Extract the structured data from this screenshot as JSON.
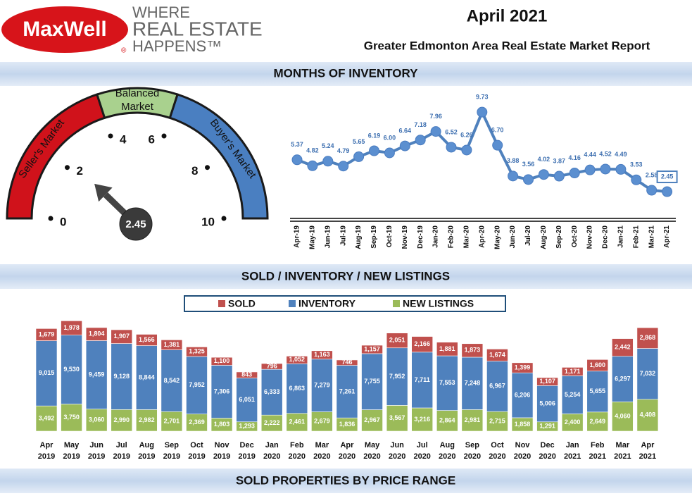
{
  "header": {
    "logo": "MaxWell",
    "registered": "®",
    "tagline": [
      "WHERE",
      "REAL ESTATE",
      "HAPPENS™"
    ],
    "title": "April 2021",
    "subtitle": "Greater Edmonton Area Real Estate Market Report"
  },
  "sections": [
    "MONTHS OF INVENTORY",
    "SOLD / INVENTORY / NEW LISTINGS",
    "SOLD PROPERTIES BY PRICE RANGE"
  ],
  "chart_data": [
    {
      "type": "gauge",
      "value": 2.45,
      "xlim": [
        0,
        10
      ],
      "xticks": [
        0,
        2,
        4,
        6,
        8,
        10
      ],
      "zones": [
        {
          "label": [
            "Seller's Market"
          ],
          "from": 0,
          "to": 4,
          "color": "#d0121b"
        },
        {
          "label": [
            "Balanced",
            "Market"
          ],
          "from": 4,
          "to": 6,
          "color": "#a9d18e"
        },
        {
          "label": [
            "Buyer's Market"
          ],
          "from": 6,
          "to": 10,
          "color": "#4a7fc1"
        }
      ]
    },
    {
      "type": "line",
      "color": "#4f81bd",
      "ylim": [
        0,
        10
      ],
      "categories": [
        "Apr-19",
        "May-19",
        "Jun-19",
        "Jul-19",
        "Aug-19",
        "Sep-19",
        "Oct-19",
        "Nov-19",
        "Dec-19",
        "Jan-20",
        "Feb-20",
        "Mar-20",
        "Apr-20",
        "May-20",
        "Jun-20",
        "Jul-20",
        "Aug-20",
        "Sep-20",
        "Oct-20",
        "Nov-20",
        "Dec-20",
        "Jan-21",
        "Feb-21",
        "Mar-21",
        "Apr-21"
      ],
      "values": [
        5.37,
        4.82,
        5.24,
        4.79,
        5.65,
        6.19,
        6.0,
        6.64,
        7.18,
        7.96,
        6.52,
        6.26,
        9.73,
        6.7,
        3.88,
        3.56,
        4.02,
        3.87,
        4.16,
        4.44,
        4.52,
        4.49,
        3.53,
        2.58,
        2.45
      ],
      "value_labels": [
        "5.37",
        "4.82",
        "5.24",
        "4.79",
        "5.65",
        "6.19",
        "6.00",
        "6.64",
        "7.18",
        "7.96",
        "6.52",
        "6.26",
        "9.73",
        "6.70",
        "3.88",
        "3.56",
        "4.02",
        "3.87",
        "4.16",
        "4.44",
        "4.52",
        "4.49",
        "3.53",
        "2.58",
        "2.45"
      ]
    },
    {
      "type": "stacked_bar",
      "ylim": [
        0,
        15000
      ],
      "categories": [
        [
          "Apr",
          "2019"
        ],
        [
          "May",
          "2019"
        ],
        [
          "Jun",
          "2019"
        ],
        [
          "Jul",
          "2019"
        ],
        [
          "Aug",
          "2019"
        ],
        [
          "Sep",
          "2019"
        ],
        [
          "Oct",
          "2019"
        ],
        [
          "Nov",
          "2019"
        ],
        [
          "Dec",
          "2019"
        ],
        [
          "Jan",
          "2020"
        ],
        [
          "Feb",
          "2020"
        ],
        [
          "Mar",
          "2020"
        ],
        [
          "Apr",
          "2020"
        ],
        [
          "May",
          "2020"
        ],
        [
          "Jun",
          "2020"
        ],
        [
          "Jul",
          "2020"
        ],
        [
          "Aug",
          "2020"
        ],
        [
          "Sep",
          "2020"
        ],
        [
          "Oct",
          "2020"
        ],
        [
          "Nov",
          "2020"
        ],
        [
          "Dec",
          "2020"
        ],
        [
          "Jan",
          "2021"
        ],
        [
          "Feb",
          "2021"
        ],
        [
          "Mar",
          "2021"
        ],
        [
          "Apr",
          "2021"
        ]
      ],
      "series": [
        {
          "name": "SOLD",
          "color": "#c0504d",
          "values": [
            1679,
            1978,
            1804,
            1907,
            1566,
            1381,
            1325,
            1100,
            843,
            796,
            1052,
            1163,
            746,
            1157,
            2051,
            2166,
            1881,
            1873,
            1674,
            1399,
            1107,
            1171,
            1600,
            2442,
            2868
          ],
          "value_labels": [
            "1,679",
            "1,978",
            "1,804",
            "1,907",
            "1,566",
            "1,381",
            "1,325",
            "1,100",
            "843",
            "796",
            "1,052",
            "1,163",
            "746",
            "1,157",
            "2,051",
            "2,166",
            "1,881",
            "1,873",
            "1,674",
            "1,399",
            "1,107",
            "1,171",
            "1,600",
            "2,442",
            "2,868"
          ]
        },
        {
          "name": "INVENTORY",
          "color": "#4f81bd",
          "values": [
            9015,
            9530,
            9459,
            9128,
            8844,
            8542,
            7952,
            7306,
            6051,
            6333,
            6863,
            7279,
            7261,
            7755,
            7952,
            7711,
            7553,
            7248,
            6967,
            6206,
            5006,
            5254,
            5655,
            6297,
            7032
          ],
          "value_labels": [
            "9,015",
            "9,530",
            "9,459",
            "9,128",
            "8,844",
            "8,542",
            "7,952",
            "7,306",
            "6,051",
            "6,333",
            "6,863",
            "7,279",
            "7,261",
            "7,755",
            "7,952",
            "7,711",
            "7,553",
            "7,248",
            "6,967",
            "6,206",
            "5,006",
            "5,254",
            "5,655",
            "6,297",
            "7,032"
          ]
        },
        {
          "name": "NEW LISTINGS",
          "color": "#9bbb59",
          "values": [
            3492,
            3750,
            3060,
            2990,
            2982,
            2701,
            2369,
            1803,
            1293,
            2222,
            2461,
            2679,
            1836,
            2967,
            3567,
            3216,
            2864,
            2981,
            2715,
            1858,
            1291,
            2400,
            2649,
            4060,
            4408
          ],
          "value_labels": [
            "3,492",
            "3,750",
            "3,060",
            "2,990",
            "2,982",
            "2,701",
            "2,369",
            "1,803",
            "1,293",
            "2,222",
            "2,461",
            "2,679",
            "1,836",
            "2,967",
            "3,567",
            "3,216",
            "2,864",
            "2,981",
            "2,715",
            "1,858",
            "1,291",
            "2,400",
            "2,649",
            "4,060",
            "4,408"
          ]
        }
      ]
    }
  ]
}
